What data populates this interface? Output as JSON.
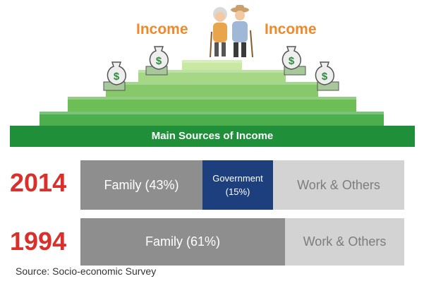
{
  "pyramid": {
    "income_left": "Income",
    "income_right": "Income",
    "main_label": "Main Sources of Income"
  },
  "rows": [
    {
      "year": "2014",
      "segments": [
        {
          "label": "Family (43%)",
          "share": 0.43
        },
        {
          "label": "Government",
          "label2": "(15%)",
          "share": 0.15
        },
        {
          "label": "Work & Others",
          "share": 0.42
        }
      ]
    },
    {
      "year": "1994",
      "segments": [
        {
          "label": "Family (61%)",
          "share": 0.61
        },
        {
          "label": "Work & Others",
          "share": 0.39
        }
      ]
    }
  ],
  "source": "Source: Socio-economic Survey",
  "colors": {
    "income_text": "#ef8a2c",
    "year_text": "#d9302b",
    "family": "#8e8e8e",
    "government": "#1e3f7d",
    "work_others": "#d3d3d3",
    "pyramid_base": "#1f8f3a"
  },
  "icons": [
    "money-bag-icon",
    "elderly-couple-icon"
  ]
}
